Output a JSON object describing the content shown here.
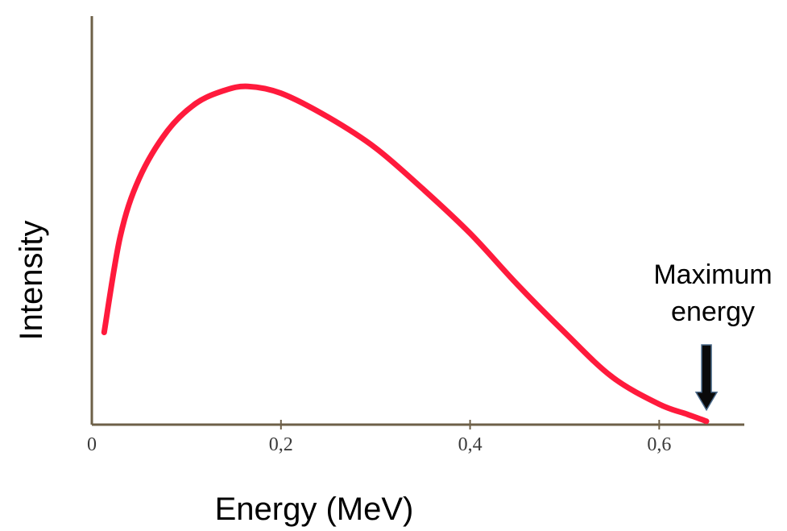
{
  "chart_data": {
    "type": "line",
    "title": "",
    "xlabel": "Energy (MeV)",
    "ylabel": "Intensity",
    "xlim": [
      0,
      0.69
    ],
    "ylim": [
      0,
      1
    ],
    "x_ticks": [
      0,
      0.2,
      0.4,
      0.6
    ],
    "x_tick_labels": [
      "0",
      "0,2",
      "0,4",
      "0,6"
    ],
    "y_ticks_shown": false,
    "grid": false,
    "legend": "none",
    "series": [
      {
        "color": "#ff1a3c",
        "x": [
          0.013,
          0.03,
          0.05,
          0.08,
          0.11,
          0.14,
          0.165,
          0.2,
          0.25,
          0.3,
          0.35,
          0.4,
          0.45,
          0.5,
          0.55,
          0.6,
          0.63,
          0.65
        ],
        "y": [
          0.27,
          0.55,
          0.72,
          0.86,
          0.94,
          0.978,
          0.99,
          0.97,
          0.9,
          0.81,
          0.69,
          0.56,
          0.41,
          0.27,
          0.14,
          0.06,
          0.03,
          0.01
        ]
      }
    ],
    "annotations": [
      {
        "lines": [
          "Maximum",
          "energy"
        ],
        "x": 0.65,
        "y": 0.01,
        "arrow": "down",
        "arrow_color": "#0a0a0a"
      }
    ]
  }
}
